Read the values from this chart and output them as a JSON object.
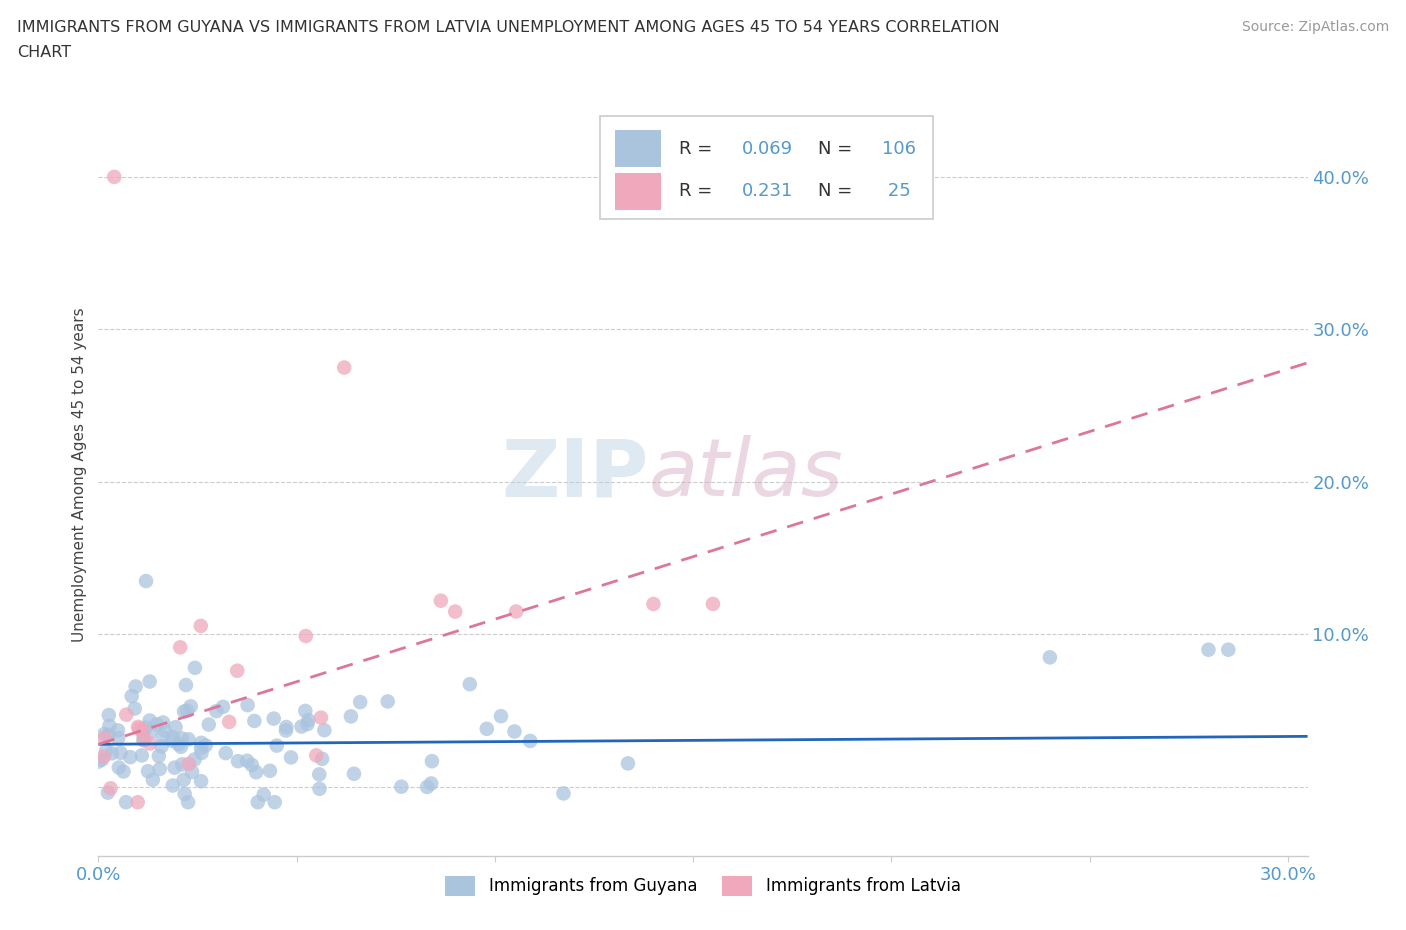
{
  "title_line1": "IMMIGRANTS FROM GUYANA VS IMMIGRANTS FROM LATVIA UNEMPLOYMENT AMONG AGES 45 TO 54 YEARS CORRELATION",
  "title_line2": "CHART",
  "source": "Source: ZipAtlas.com",
  "ylabel": "Unemployment Among Ages 45 to 54 years",
  "xlim": [
    0.0,
    0.305
  ],
  "ylim": [
    -0.045,
    0.455
  ],
  "xticks": [
    0.0,
    0.05,
    0.1,
    0.15,
    0.2,
    0.25,
    0.3
  ],
  "xticklabels": [
    "0.0%",
    "",
    "",
    "",
    "",
    "",
    "30.0%"
  ],
  "yticks": [
    0.0,
    0.1,
    0.2,
    0.3,
    0.4
  ],
  "yticklabels": [
    "",
    "10.0%",
    "20.0%",
    "30.0%",
    "40.0%"
  ],
  "guyana_color": "#aac4de",
  "latvia_color": "#f0a8bc",
  "guyana_line_color": "#2266bb",
  "latvia_line_color": "#dd7799",
  "R_guyana": 0.069,
  "N_guyana": 106,
  "R_latvia": 0.231,
  "N_latvia": 25,
  "watermark_zip": "ZIP",
  "watermark_atlas": "atlas",
  "background_color": "#ffffff",
  "grid_color": "#cccccc",
  "tick_color": "#5599cc",
  "guyana_slope": 0.017,
  "guyana_intercept": 0.028,
  "latvia_slope": 0.82,
  "latvia_intercept": 0.028
}
